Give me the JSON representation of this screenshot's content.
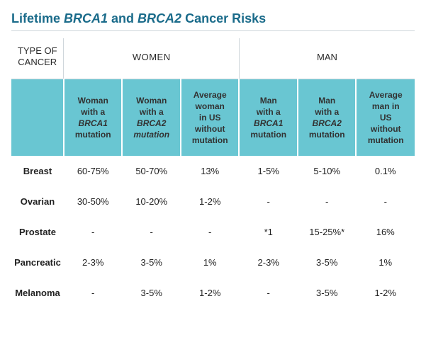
{
  "title_prefix": "Lifetime ",
  "title_gene1": "BRCA1",
  "title_mid": " and ",
  "title_gene2": "BRCA2",
  "title_suffix": " Cancer Risks",
  "colors": {
    "title": "#1a6b8a",
    "teal": "#69c6d2",
    "rule": "#cfd6db",
    "text": "#222222"
  },
  "header_top": {
    "type_line1": "TYPE OF",
    "type_line2": "CANCER",
    "women": "WOMEN",
    "man": "MAN"
  },
  "subheaders": [
    {
      "l1": "Woman",
      "l2": "with a",
      "gene": "BRCA1",
      "l4": "mutation",
      "italic_mut": false
    },
    {
      "l1": "Woman",
      "l2": "with a",
      "gene": "BRCA2",
      "l4": "mutation",
      "italic_mut": true
    },
    {
      "l1": "Average",
      "l2": "woman",
      "l3": "in US",
      "l4": "without",
      "l5": "mutation"
    },
    {
      "l1": "Man",
      "l2": "with a",
      "gene": "BRCA1",
      "l4": "mutation",
      "italic_mut": false
    },
    {
      "l1": "Man",
      "l2": "with a",
      "gene": "BRCA2",
      "l4": "mutation",
      "italic_mut": false
    },
    {
      "l1": "Average",
      "l2": "man in",
      "l3": "US",
      "l4": "without",
      "l5": "mutation"
    }
  ],
  "rows": [
    {
      "label": "Breast",
      "cells": [
        "60-75%",
        "50-70%",
        "13%",
        "1-5%",
        "5-10%",
        "0.1%"
      ]
    },
    {
      "label": "Ovarian",
      "cells": [
        "30-50%",
        "10-20%",
        "1-2%",
        "-",
        "-",
        "-"
      ]
    },
    {
      "label": "Prostate",
      "cells": [
        "-",
        "-",
        "-",
        "*1",
        "15-25%*",
        "16%"
      ]
    },
    {
      "label": "Pancreatic",
      "cells": [
        "2-3%",
        "3-5%",
        "1%",
        "2-3%",
        "3-5%",
        "1%"
      ]
    },
    {
      "label": "Melanoma",
      "cells": [
        "-",
        "3-5%",
        "1-2%",
        "-",
        "3-5%",
        "1-2%"
      ]
    }
  ]
}
